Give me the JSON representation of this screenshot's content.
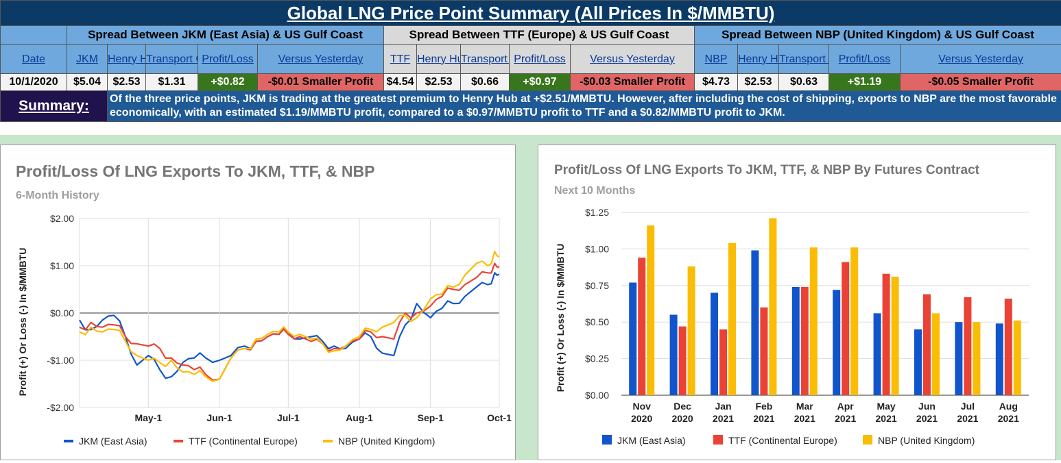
{
  "title": "Global LNG Price Point Summary (All Prices In $/MMBTU)",
  "groups": [
    "Spread Between JKM (East Asia) & US Gulf Coast",
    "Spread Between TTF (Europe) & US Gulf Coast",
    "Spread Between NBP (United Kingdom) & US Gulf Coast"
  ],
  "headers": {
    "date": "Date",
    "jkm": "JKM",
    "henry_hub_1": "Henry Hub",
    "transport_1": "Transport Cost",
    "profit_1": "Profit/Loss",
    "versus_1": "Versus Yesterday",
    "ttf": "TTF",
    "henry_hub_2": "Henry Hub",
    "transport_2": "Transport Cost",
    "profit_2": "Profit/Loss",
    "versus_2": "Versus Yesterday",
    "nbp": "NBP",
    "henry_hub_3": "Henry Hub",
    "transport_3": "Transport Cost",
    "profit_3": "Profit/Loss",
    "versus_3": "Versus Yesterday"
  },
  "row": {
    "date": "10/1/2020",
    "jkm": "$5.04",
    "hh1": "$2.53",
    "tc1": "$1.31",
    "pl1": "+$0.82",
    "vy1": "-$0.01 Smaller Profit",
    "ttf": "$4.54",
    "hh2": "$2.53",
    "tc2": "$0.66",
    "pl2": "+$0.97",
    "vy2": "-$0.03 Smaller Profit",
    "nbp": "$4.73",
    "hh3": "$2.53",
    "tc3": "$0.63",
    "pl3": "+$1.19",
    "vy3": "-$0.05 Smaller Profit"
  },
  "summary": {
    "label": "Summary:",
    "text": "Of the three price points, JKM is trading at the greatest premium to Henry Hub at +$2.51/MMBTU. However, after including the cost of shipping, exports to NBP are the most favorable economically, with an estimated $1.19/MMBTU profit, compared to a $0.97/MMBTU profit to TTF and a $0.82/MMBTU profit to JKM."
  },
  "colors": {
    "jkm": "#1155cc",
    "ttf": "#ea4335",
    "nbp": "#fbbc04"
  },
  "chart_data": [
    {
      "type": "line",
      "title": "Profit/Loss Of LNG Exports To JKM, TTF, & NBP",
      "subtitle": "6-Month History",
      "ylabel": "Profit (+) Or Loss (-) In $/MMBTU",
      "ylim": [
        -2,
        2
      ],
      "y_ticks": [
        "$2.00",
        "$1.00",
        "$0.00",
        "-$1.00",
        "-$2.00"
      ],
      "x_ticks": [
        {
          "label": "May-1",
          "t": 30
        },
        {
          "label": "Jun-1",
          "t": 61
        },
        {
          "label": "Jul-1",
          "t": 91
        },
        {
          "label": "Aug-1",
          "t": 122
        },
        {
          "label": "Sep-1",
          "t": 153
        },
        {
          "label": "Oct-1",
          "t": 183
        }
      ],
      "legend": [
        "JKM (East Asia)",
        "TTF (Continental Europe)",
        "NBP (United Kingdom)"
      ],
      "grid": true,
      "series": [
        {
          "name": "JKM (East Asia)",
          "color": "#1155cc",
          "points": [
            [
              0,
              -0.15
            ],
            [
              5,
              -0.35
            ],
            [
              10,
              -0.15
            ],
            [
              15,
              -0.05
            ],
            [
              20,
              -0.5
            ],
            [
              25,
              -1.1
            ],
            [
              30,
              -0.9
            ],
            [
              35,
              -1.2
            ],
            [
              40,
              -1.35
            ],
            [
              45,
              -1.05
            ],
            [
              50,
              -0.95
            ],
            [
              55,
              -0.95
            ],
            [
              61,
              -1.0
            ],
            [
              66,
              -0.9
            ],
            [
              72,
              -0.7
            ],
            [
              77,
              -0.6
            ],
            [
              82,
              -0.5
            ],
            [
              87,
              -0.45
            ],
            [
              91,
              -0.4
            ],
            [
              96,
              -0.55
            ],
            [
              101,
              -0.5
            ],
            [
              106,
              -0.6
            ],
            [
              111,
              -0.7
            ],
            [
              116,
              -0.75
            ],
            [
              122,
              -0.55
            ],
            [
              127,
              -0.5
            ],
            [
              132,
              -0.85
            ],
            [
              137,
              -0.9
            ],
            [
              142,
              -0.25
            ],
            [
              147,
              0.2
            ],
            [
              153,
              -0.1
            ],
            [
              158,
              0.1
            ],
            [
              163,
              0.2
            ],
            [
              168,
              0.35
            ],
            [
              173,
              0.55
            ],
            [
              178,
              0.6
            ],
            [
              181,
              0.85
            ],
            [
              183,
              0.82
            ]
          ]
        },
        {
          "name": "TTF (Continental Europe)",
          "color": "#ea4335",
          "points": [
            [
              0,
              -0.3
            ],
            [
              5,
              -0.2
            ],
            [
              10,
              -0.3
            ],
            [
              15,
              -0.25
            ],
            [
              20,
              -0.5
            ],
            [
              25,
              -0.65
            ],
            [
              30,
              -0.7
            ],
            [
              35,
              -0.75
            ],
            [
              40,
              -0.95
            ],
            [
              45,
              -1.1
            ],
            [
              50,
              -1.2
            ],
            [
              55,
              -1.3
            ],
            [
              61,
              -1.4
            ],
            [
              66,
              -0.95
            ],
            [
              72,
              -0.75
            ],
            [
              77,
              -0.6
            ],
            [
              82,
              -0.5
            ],
            [
              87,
              -0.45
            ],
            [
              91,
              -0.45
            ],
            [
              96,
              -0.5
            ],
            [
              101,
              -0.6
            ],
            [
              106,
              -0.65
            ],
            [
              111,
              -0.75
            ],
            [
              116,
              -0.7
            ],
            [
              122,
              -0.55
            ],
            [
              127,
              -0.4
            ],
            [
              132,
              -0.5
            ],
            [
              137,
              -0.55
            ],
            [
              142,
              0.0
            ],
            [
              147,
              0.0
            ],
            [
              153,
              0.15
            ],
            [
              158,
              0.35
            ],
            [
              163,
              0.5
            ],
            [
              168,
              0.6
            ],
            [
              173,
              0.75
            ],
            [
              178,
              0.85
            ],
            [
              181,
              1.05
            ],
            [
              183,
              0.97
            ]
          ]
        },
        {
          "name": "NBP (United Kingdom)",
          "color": "#fbbc04",
          "points": [
            [
              0,
              -0.4
            ],
            [
              5,
              -0.3
            ],
            [
              10,
              -0.4
            ],
            [
              15,
              -0.35
            ],
            [
              20,
              -0.6
            ],
            [
              25,
              -0.9
            ],
            [
              30,
              -1.0
            ],
            [
              35,
              -1.05
            ],
            [
              40,
              -1.0
            ],
            [
              45,
              -1.25
            ],
            [
              50,
              -1.3
            ],
            [
              55,
              -1.35
            ],
            [
              61,
              -1.4
            ],
            [
              66,
              -0.95
            ],
            [
              72,
              -0.75
            ],
            [
              77,
              -0.55
            ],
            [
              82,
              -0.45
            ],
            [
              87,
              -0.4
            ],
            [
              91,
              -0.4
            ],
            [
              96,
              -0.45
            ],
            [
              101,
              -0.55
            ],
            [
              106,
              -0.65
            ],
            [
              111,
              -0.8
            ],
            [
              116,
              -0.7
            ],
            [
              122,
              -0.5
            ],
            [
              127,
              -0.35
            ],
            [
              132,
              -0.3
            ],
            [
              137,
              -0.2
            ],
            [
              142,
              -0.05
            ],
            [
              147,
              -0.1
            ],
            [
              153,
              0.3
            ],
            [
              158,
              0.4
            ],
            [
              163,
              0.55
            ],
            [
              168,
              0.8
            ],
            [
              173,
              1.05
            ],
            [
              178,
              1.0
            ],
            [
              181,
              1.3
            ],
            [
              183,
              1.19
            ]
          ]
        }
      ]
    },
    {
      "type": "bar",
      "title": "Profit/Loss Of LNG Exports To JKM, TTF, & NBP By Futures Contract",
      "subtitle": "Next 10 Months",
      "ylabel": "Profit (+) Or Loss (-) In $/MMBTU",
      "ylim": [
        0,
        1.25
      ],
      "y_ticks": [
        "$1.25",
        "$1.00",
        "$0.75",
        "$0.50",
        "$0.25",
        "$0.00"
      ],
      "categories": [
        [
          "Nov",
          "2020"
        ],
        [
          "Dec",
          "2020"
        ],
        [
          "Jan",
          "2021"
        ],
        [
          "Feb",
          "2021"
        ],
        [
          "Mar",
          "2021"
        ],
        [
          "Apr",
          "2021"
        ],
        [
          "May",
          "2021"
        ],
        [
          "Jun",
          "2021"
        ],
        [
          "Jul",
          "2021"
        ],
        [
          "Aug",
          "2021"
        ]
      ],
      "legend": [
        "JKM (East Asia)",
        "TTF (Continental Europe)",
        "NBP (United Kingdom)"
      ],
      "series": [
        {
          "name": "JKM (East Asia)",
          "color": "#1155cc",
          "values": [
            0.77,
            0.55,
            0.7,
            0.99,
            0.74,
            0.72,
            0.56,
            0.45,
            0.5,
            0.49
          ]
        },
        {
          "name": "TTF (Continental Europe)",
          "color": "#ea4335",
          "values": [
            0.94,
            0.47,
            0.45,
            0.6,
            0.74,
            0.91,
            0.83,
            0.69,
            0.67,
            0.66
          ]
        },
        {
          "name": "NBP (United Kingdom)",
          "color": "#fbbc04",
          "values": [
            1.16,
            0.88,
            1.04,
            1.21,
            1.01,
            1.01,
            0.81,
            0.56,
            0.5,
            0.51
          ]
        }
      ]
    }
  ]
}
